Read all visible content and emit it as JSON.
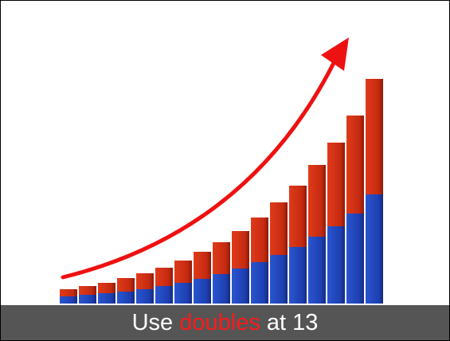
{
  "caption": {
    "parts": [
      "Use",
      "doubles",
      "at 13"
    ]
  }
}
